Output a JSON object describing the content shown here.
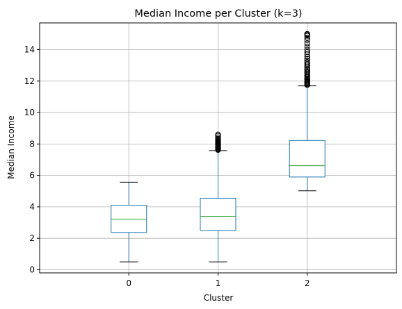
{
  "chart_data": {
    "type": "box",
    "title": "Median Income per Cluster (k=3)",
    "xlabel": "Cluster",
    "ylabel": "Median Income",
    "categories": [
      "0",
      "1",
      "2"
    ],
    "ylim": [
      -0.2,
      15.7
    ],
    "yticks": [
      0,
      2,
      4,
      6,
      8,
      10,
      12,
      14
    ],
    "grid": true,
    "colors": {
      "box": "#1f77b4",
      "median": "#2ca02c",
      "whisker_cap": "#000000",
      "flier": "#000000",
      "grid": "#b0b0b0"
    },
    "boxes": [
      {
        "category": "0",
        "whisker_low": 0.5,
        "q1": 2.37,
        "median": 3.22,
        "q3": 4.1,
        "whisker_high": 5.57,
        "fliers": []
      },
      {
        "category": "1",
        "whisker_low": 0.5,
        "q1": 2.5,
        "median": 3.4,
        "q3": 4.55,
        "whisker_high": 7.58,
        "fliers": [
          7.62,
          7.66,
          7.7,
          7.74,
          7.78,
          7.82,
          7.86,
          7.9,
          7.94,
          7.98,
          8.02,
          8.06,
          8.1,
          8.15,
          8.2,
          8.26,
          8.33,
          8.42,
          8.52,
          8.6
        ]
      },
      {
        "category": "2",
        "whisker_low": 5.02,
        "q1": 5.9,
        "median": 6.62,
        "q3": 8.22,
        "whisker_high": 11.7,
        "fliers": [
          11.75,
          11.8,
          11.85,
          11.9,
          11.95,
          12.0,
          12.06,
          12.12,
          12.18,
          12.25,
          12.32,
          12.4,
          12.48,
          12.56,
          12.64,
          12.72,
          12.8,
          12.9,
          13.0,
          13.1,
          13.2,
          13.3,
          13.42,
          13.55,
          13.7,
          13.85,
          14.0,
          14.2,
          14.4,
          14.6,
          14.75,
          14.88,
          14.95,
          15.0,
          15.0
        ]
      }
    ]
  }
}
